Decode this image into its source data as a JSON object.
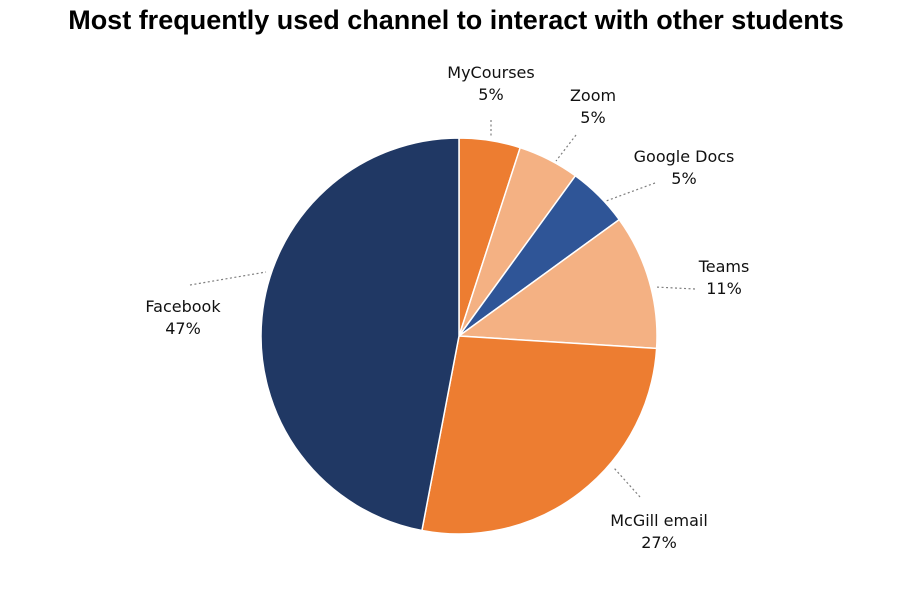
{
  "chart_data": {
    "type": "pie",
    "title": "Most frequently used channel to interact with other students",
    "slices": [
      {
        "label": "MyCourses",
        "value": 5,
        "display": "5%",
        "color": "#ED7D31"
      },
      {
        "label": "Zoom",
        "value": 5,
        "display": "5%",
        "color": "#F4B183"
      },
      {
        "label": "Google Docs",
        "value": 5,
        "display": "5%",
        "color": "#2F5597"
      },
      {
        "label": "Teams",
        "value": 11,
        "display": "11%",
        "color": "#F4B183"
      },
      {
        "label": "McGill email",
        "value": 27,
        "display": "27%",
        "color": "#ED7D31"
      },
      {
        "label": "Facebook",
        "value": 47,
        "display": "47%",
        "color": "#203864"
      }
    ],
    "legend": "none",
    "start_angle": "12 o'clock, clockwise"
  }
}
